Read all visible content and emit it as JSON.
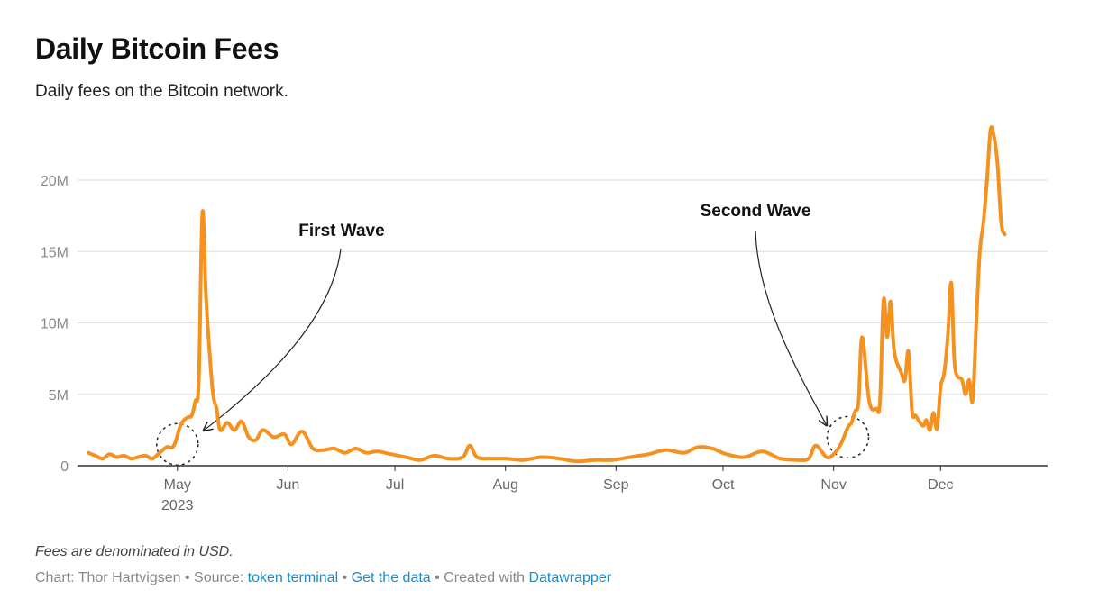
{
  "title": "Daily Bitcoin Fees",
  "subtitle": "Daily fees on the Bitcoin network.",
  "colors": {
    "line": "#f5911e",
    "grid": "#dedede",
    "axis": "#333333",
    "link": "#1a8bc4"
  },
  "chart_data": {
    "type": "line",
    "title": "Daily Bitcoin Fees",
    "subtitle": "Daily fees on the Bitcoin network.",
    "xlabel": "",
    "ylabel": "",
    "ylim": [
      0,
      20000000
    ],
    "yticks": [
      {
        "value": 0,
        "label": "0"
      },
      {
        "value": 5000000,
        "label": "5M"
      },
      {
        "value": 10000000,
        "label": "10M"
      },
      {
        "value": 15000000,
        "label": "15M"
      },
      {
        "value": 20000000,
        "label": "20M"
      }
    ],
    "xrange": [
      "2023-04-03",
      "2023-12-31"
    ],
    "xticks": [
      {
        "date": "2023-05-01",
        "label": "May",
        "sublabel": "2023"
      },
      {
        "date": "2023-06-01",
        "label": "Jun"
      },
      {
        "date": "2023-07-01",
        "label": "Jul"
      },
      {
        "date": "2023-08-01",
        "label": "Aug"
      },
      {
        "date": "2023-09-01",
        "label": "Sep"
      },
      {
        "date": "2023-10-01",
        "label": "Oct"
      },
      {
        "date": "2023-11-01",
        "label": "Nov"
      },
      {
        "date": "2023-12-01",
        "label": "Dec"
      }
    ],
    "grid": true,
    "series": [
      {
        "x": [
          "2023-04-06",
          "2023-04-08",
          "2023-04-10",
          "2023-04-12",
          "2023-04-14",
          "2023-04-16",
          "2023-04-18",
          "2023-04-20",
          "2023-04-22",
          "2023-04-24",
          "2023-04-26",
          "2023-04-28",
          "2023-04-30",
          "2023-05-02",
          "2023-05-04",
          "2023-05-05",
          "2023-05-06",
          "2023-05-07",
          "2023-05-08",
          "2023-05-09",
          "2023-05-10",
          "2023-05-11",
          "2023-05-12",
          "2023-05-13",
          "2023-05-15",
          "2023-05-17",
          "2023-05-19",
          "2023-05-21",
          "2023-05-23",
          "2023-05-25",
          "2023-05-28",
          "2023-05-31",
          "2023-06-02",
          "2023-06-05",
          "2023-06-08",
          "2023-06-11",
          "2023-06-14",
          "2023-06-17",
          "2023-06-20",
          "2023-06-23",
          "2023-06-26",
          "2023-06-30",
          "2023-07-04",
          "2023-07-08",
          "2023-07-12",
          "2023-07-16",
          "2023-07-20",
          "2023-07-22",
          "2023-07-24",
          "2023-07-28",
          "2023-08-01",
          "2023-08-06",
          "2023-08-11",
          "2023-08-16",
          "2023-08-21",
          "2023-08-26",
          "2023-08-31",
          "2023-09-05",
          "2023-09-10",
          "2023-09-15",
          "2023-09-20",
          "2023-09-24",
          "2023-09-28",
          "2023-10-02",
          "2023-10-07",
          "2023-10-12",
          "2023-10-17",
          "2023-10-22",
          "2023-10-25",
          "2023-10-27",
          "2023-10-30",
          "2023-11-01",
          "2023-11-03",
          "2023-11-05",
          "2023-11-06",
          "2023-11-07",
          "2023-11-08",
          "2023-11-09",
          "2023-11-11",
          "2023-11-13",
          "2023-11-14",
          "2023-11-15",
          "2023-11-16",
          "2023-11-17",
          "2023-11-18",
          "2023-11-20",
          "2023-11-21",
          "2023-11-22",
          "2023-11-23",
          "2023-11-24",
          "2023-11-26",
          "2023-11-27",
          "2023-11-28",
          "2023-11-29",
          "2023-11-30",
          "2023-12-01",
          "2023-12-02",
          "2023-12-03",
          "2023-12-04",
          "2023-12-05",
          "2023-12-07",
          "2023-12-08",
          "2023-12-09",
          "2023-12-10",
          "2023-12-11",
          "2023-12-12",
          "2023-12-13",
          "2023-12-14",
          "2023-12-15",
          "2023-12-16",
          "2023-12-17",
          "2023-12-18",
          "2023-12-19"
        ],
        "values": [
          900000,
          700000,
          500000,
          800000,
          600000,
          700000,
          500000,
          600000,
          700000,
          500000,
          900000,
          1300000,
          1400000,
          2900000,
          3400000,
          3500000,
          4500000,
          6000000,
          17700000,
          12000000,
          8000000,
          5000000,
          4000000,
          2500000,
          3000000,
          2500000,
          3100000,
          2000000,
          1800000,
          2500000,
          2000000,
          2200000,
          1500000,
          2400000,
          1200000,
          1100000,
          1200000,
          900000,
          1200000,
          900000,
          1000000,
          800000,
          600000,
          400000,
          700000,
          500000,
          600000,
          1400000,
          600000,
          500000,
          500000,
          400000,
          600000,
          500000,
          300000,
          400000,
          400000,
          600000,
          800000,
          1100000,
          900000,
          1300000,
          1200000,
          800000,
          600000,
          1000000,
          500000,
          400000,
          500000,
          1400000,
          600000,
          800000,
          1500000,
          2700000,
          3000000,
          3800000,
          4500000,
          9000000,
          4500000,
          4000000,
          4500000,
          11600000,
          9000000,
          11500000,
          8000000,
          6500000,
          6000000,
          8000000,
          3800000,
          3500000,
          2800000,
          3200000,
          2500000,
          3700000,
          2600000,
          5500000,
          6500000,
          9000000,
          12800000,
          7000000,
          6000000,
          5000000,
          6000000,
          4600000,
          10000000,
          15000000,
          17000000,
          20000000,
          23500000,
          23000000,
          21000000,
          17000000,
          16200000
        ]
      }
    ],
    "annotations": [
      {
        "text": "First Wave",
        "target_date": "2023-05-01",
        "target_value": 2000000
      },
      {
        "text": "Second Wave",
        "target_date": "2023-11-05",
        "target_value": 2500000
      }
    ]
  },
  "footer": {
    "note": "Fees are denominated in USD.",
    "credit_prefix": "Chart: Thor Hartvigsen • Source: ",
    "source_link": "token terminal",
    "sep1": " • ",
    "data_link": "Get the data",
    "sep2": " • Created with ",
    "tool_link": "Datawrapper"
  }
}
